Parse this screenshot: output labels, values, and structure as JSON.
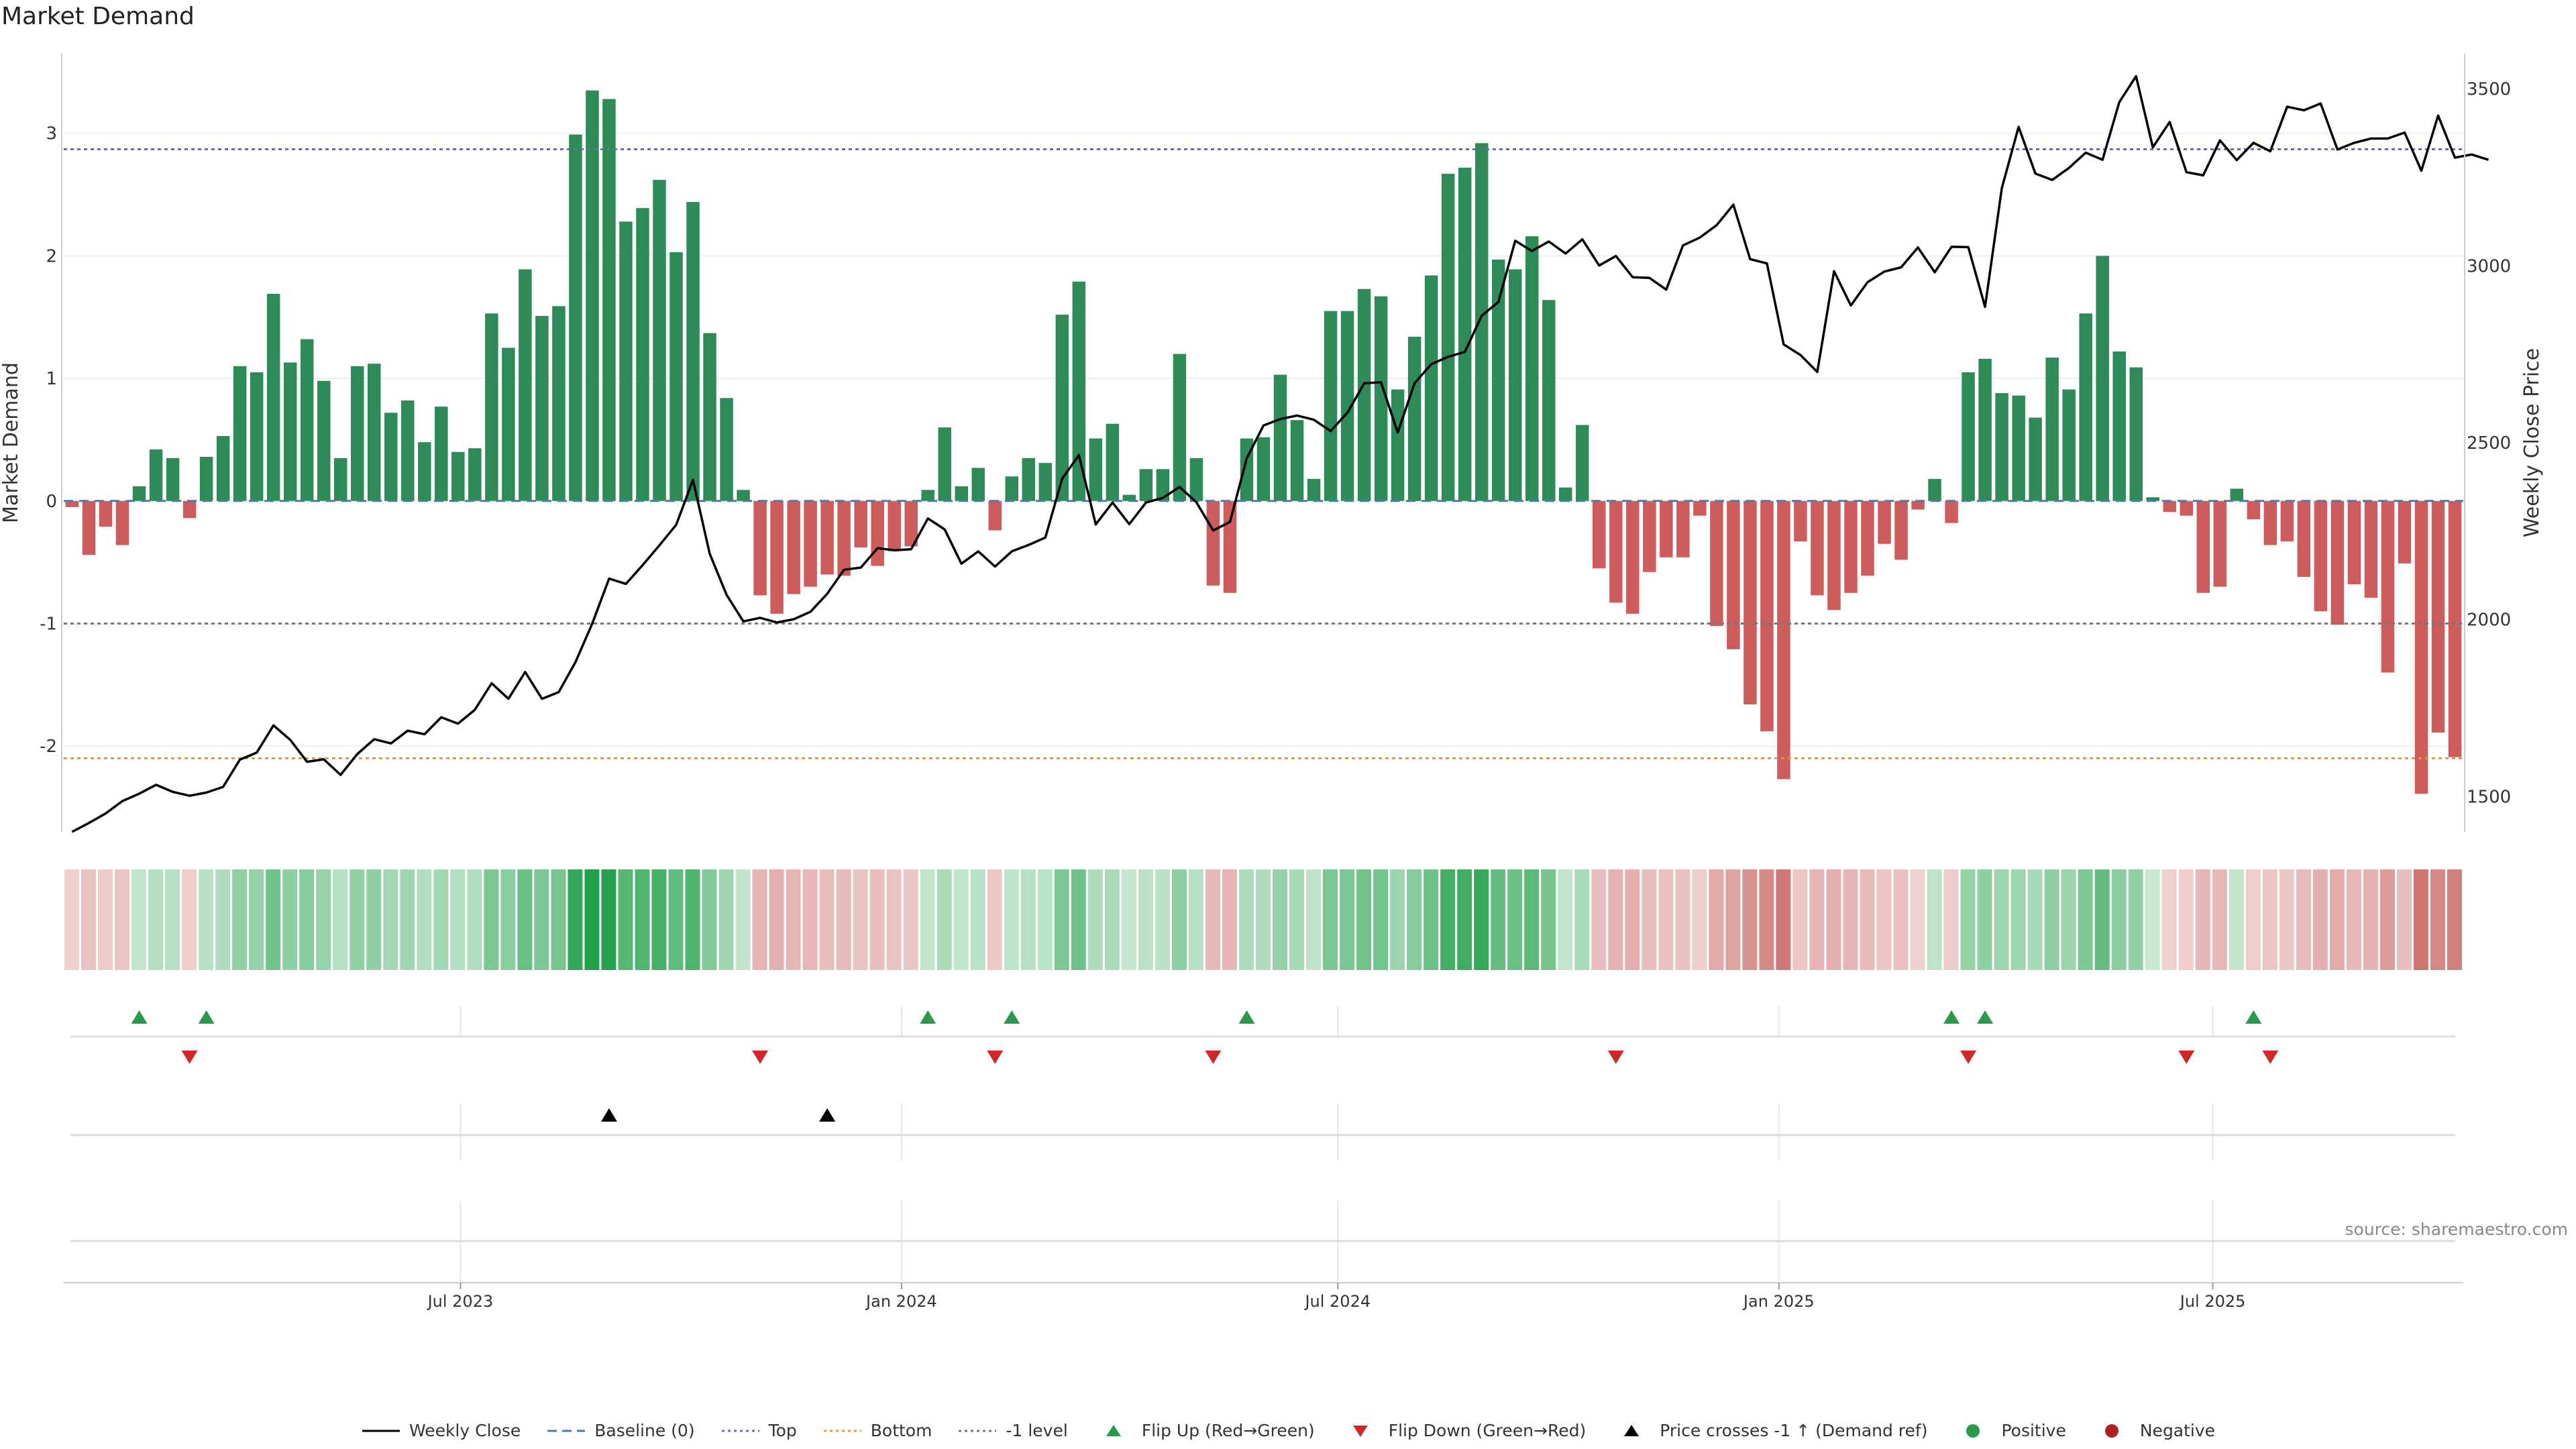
{
  "title": "Market Demand",
  "source": "source: sharemaestro.com",
  "colors": {
    "positive_bar": "#2e8b57",
    "negative_bar": "#cd5c5c",
    "price_line": "#000000",
    "top_line": "#6b6bb0",
    "minus1_line": "#777777",
    "bottom_line": "#e09a3a",
    "baseline": "#4a7ab5",
    "flip_up": "#2a9a4a",
    "flip_down": "#d02828",
    "cross_marker": "#000000",
    "positive_dot": "#2a9a4a",
    "negative_dot": "#b02020"
  },
  "legend": [
    {
      "label": "Weekly Close",
      "kind": "line-solid",
      "color": "#000000"
    },
    {
      "label": "Baseline (0)",
      "kind": "line-dashed",
      "color": "#4a7ab5"
    },
    {
      "label": "Top",
      "kind": "line-dotted",
      "color": "#6b6bb0"
    },
    {
      "label": "Bottom",
      "kind": "line-dotted",
      "color": "#e09a3a"
    },
    {
      "label": "-1 level",
      "kind": "line-dotted",
      "color": "#777777"
    },
    {
      "label": "Flip Up (Red→Green)",
      "kind": "tri-up",
      "color": "#2a9a4a"
    },
    {
      "label": "Flip Down (Green→Red)",
      "kind": "tri-down",
      "color": "#d02828"
    },
    {
      "label": "Price crosses -1 ↑ (Demand ref)",
      "kind": "tri-up",
      "color": "#000000"
    },
    {
      "label": "Positive",
      "kind": "dot",
      "color": "#2a9a4a"
    },
    {
      "label": "Negative",
      "kind": "dot",
      "color": "#b02020"
    }
  ],
  "chart_data": {
    "type": "bar",
    "ylabel_left": "Market Demand",
    "ylabel_right": "Weekly Close Price",
    "ylim_left": [
      -2.7,
      3.65
    ],
    "ylim_right": [
      1400,
      3600
    ],
    "yticks_left": [
      -2,
      -1,
      0,
      1,
      2,
      3
    ],
    "yticks_right": [
      1500,
      2000,
      2500,
      3000,
      3500
    ],
    "levels": {
      "top": 2.87,
      "bottom": -2.1,
      "minus_one": -1,
      "baseline": 0
    },
    "x_start": "2023-01-20",
    "week_days": 7,
    "x_ticks": [
      {
        "date": "2023-07-01",
        "label": "Jul 2023"
      },
      {
        "date": "2024-01-01",
        "label": "Jan 2024"
      },
      {
        "date": "2024-07-01",
        "label": "Jul 2024"
      },
      {
        "date": "2025-01-01",
        "label": "Jan 2025"
      },
      {
        "date": "2025-07-01",
        "label": "Jul 2025"
      }
    ],
    "demand": [
      -0.05,
      -0.44,
      -0.21,
      -0.36,
      0.12,
      0.42,
      0.35,
      -0.14,
      0.36,
      0.53,
      1.1,
      1.05,
      1.69,
      1.13,
      1.32,
      0.98,
      0.35,
      1.1,
      1.12,
      0.72,
      0.82,
      0.48,
      0.77,
      0.4,
      0.43,
      1.53,
      1.25,
      1.89,
      1.51,
      1.59,
      2.99,
      3.35,
      3.28,
      2.28,
      2.39,
      2.62,
      2.03,
      2.44,
      1.37,
      0.84,
      0.09,
      -0.77,
      -0.92,
      -0.76,
      -0.7,
      -0.6,
      -0.61,
      -0.38,
      -0.53,
      -0.41,
      -0.37,
      0.09,
      0.6,
      0.12,
      0.27,
      -0.24,
      0.2,
      0.35,
      0.31,
      1.52,
      1.79,
      0.51,
      0.63,
      0.05,
      0.26,
      0.26,
      1.2,
      0.35,
      -0.69,
      -0.75,
      0.51,
      0.52,
      1.03,
      0.66,
      0.18,
      1.55,
      1.55,
      1.73,
      1.67,
      0.91,
      1.34,
      1.84,
      2.67,
      2.72,
      2.92,
      1.97,
      1.89,
      2.16,
      1.64,
      0.11,
      0.62,
      -0.55,
      -0.83,
      -0.92,
      -0.58,
      -0.46,
      -0.46,
      -0.12,
      -1.02,
      -1.21,
      -1.66,
      -1.88,
      -2.27,
      -0.33,
      -0.77,
      -0.89,
      -0.75,
      -0.61,
      -0.35,
      -0.48,
      -0.07,
      0.18,
      -0.18,
      1.05,
      1.16,
      0.88,
      0.86,
      0.68,
      1.17,
      0.91,
      1.53,
      2.0,
      1.22,
      1.09,
      0.03,
      -0.09,
      -0.12,
      -0.75,
      -0.7,
      0.1,
      -0.15,
      -0.36,
      -0.33,
      -0.62,
      -0.9,
      -1.01,
      -0.68,
      -0.79,
      -1.4,
      -0.51,
      -2.39,
      -1.89,
      -2.09
    ],
    "weekly_close": [
      1400,
      1425,
      1452,
      1487,
      1508,
      1533,
      1513,
      1502,
      1511,
      1527,
      1604,
      1624,
      1701,
      1660,
      1598,
      1605,
      1561,
      1620,
      1662,
      1650,
      1686,
      1676,
      1724,
      1706,
      1745,
      1820,
      1776,
      1852,
      1776,
      1795,
      1880,
      1989,
      2116,
      2101,
      2154,
      2210,
      2268,
      2395,
      2186,
      2070,
      1995,
      2005,
      1992,
      2001,
      2022,
      2073,
      2141,
      2147,
      2202,
      2196,
      2199,
      2286,
      2255,
      2158,
      2193,
      2150,
      2193,
      2211,
      2232,
      2398,
      2465,
      2269,
      2331,
      2270,
      2331,
      2344,
      2375,
      2332,
      2252,
      2276,
      2456,
      2549,
      2567,
      2577,
      2565,
      2533,
      2585,
      2668,
      2671,
      2529,
      2668,
      2722,
      2743,
      2757,
      2859,
      2898,
      3071,
      3042,
      3069,
      3035,
      3075,
      3001,
      3028,
      2968,
      2966,
      2933,
      3058,
      3080,
      3115,
      3173,
      3019,
      3007,
      2778,
      2748,
      2700,
      2985,
      2888,
      2954,
      2984,
      2996,
      3052,
      2982,
      3054,
      3053,
      2884,
      3220,
      3393,
      3261,
      3243,
      3277,
      3320,
      3300,
      3463,
      3536,
      3335,
      3407,
      3265,
      3256,
      3355,
      3299,
      3348,
      3324,
      3450,
      3440,
      3459,
      3329,
      3348,
      3360,
      3360,
      3377,
      3269,
      3425,
      3306,
      3315,
      3300
    ],
    "flip_up_index": [
      4,
      8,
      51,
      56,
      70,
      112,
      114,
      130
    ],
    "flip_down_index": [
      7,
      41,
      55,
      68,
      92,
      113,
      126,
      131
    ],
    "price_cross_index": [
      32,
      45
    ]
  }
}
